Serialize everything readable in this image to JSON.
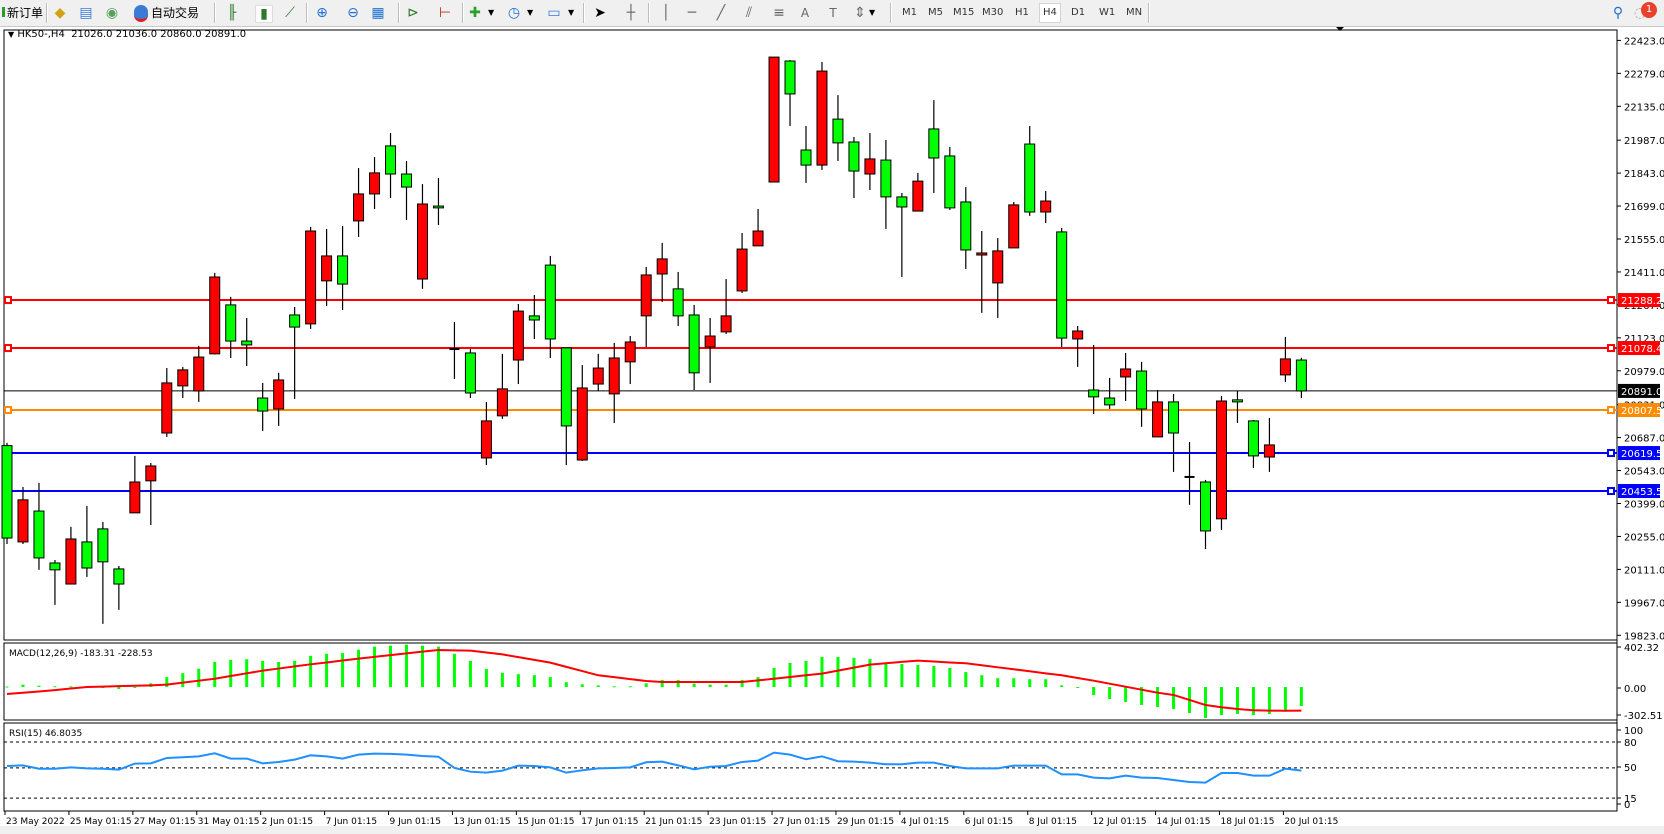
{
  "toolbar": {
    "new_order_label": "新订单",
    "auto_trading_label": "自动交易",
    "timeframes": [
      "M1",
      "M5",
      "M15",
      "M30",
      "H1",
      "H4",
      "D1",
      "W1",
      "MN"
    ],
    "active_timeframe": "H4",
    "icons": [
      "new-order-icon",
      "market-watch-icon",
      "navigator-icon",
      "signals-icon",
      "auto-trading-icon",
      "bar-chart-icon",
      "candlestick-icon",
      "line-chart-icon",
      "zoom-in-icon",
      "zoom-out-icon",
      "tile-windows-icon",
      "auto-scroll-icon",
      "chart-shift-icon",
      "new-chart-icon",
      "periods-icon",
      "templates-icon",
      "cursor-icon",
      "crosshair-icon",
      "vertical-line-icon",
      "horizontal-line-icon",
      "trendline-icon",
      "equidistant-channel-icon",
      "fibonacci-icon",
      "text-icon",
      "text-label-icon",
      "arrows-icon",
      "search-icon",
      "notifications-icon"
    ],
    "notification_count": "1"
  },
  "chart": {
    "symbol_timeframe": "HK50-,H4",
    "ohlc_readout": "21026.0 21036.0 20860.0 20891.0",
    "price_axis_labels": [
      "22423.0",
      "22279.0",
      "22135.0",
      "21987.0",
      "21843.0",
      "21699.0",
      "21555.0",
      "21411.0",
      "21267.0",
      "21123.0",
      "20979.0",
      "20831.0",
      "20687.0",
      "20543.0",
      "20399.0",
      "20255.0",
      "20111.0",
      "19967.0",
      "19823.0"
    ],
    "horizontal_lines": [
      {
        "price": 21288.2,
        "label": "21288.2",
        "color": "#ff0000",
        "kind": "level"
      },
      {
        "price": 21078.4,
        "label": "21078.4",
        "color": "#ff0000",
        "kind": "level"
      },
      {
        "price": 20891.0,
        "label": "20891.0",
        "color": "#000000",
        "kind": "bid"
      },
      {
        "price": 20807.5,
        "label": "20807.5",
        "color": "#ff8c00",
        "kind": "level"
      },
      {
        "price": 20619.5,
        "label": "20619.5",
        "color": "#0000ff",
        "kind": "level"
      },
      {
        "price": 20453.5,
        "label": "20453.5",
        "color": "#0000ff",
        "kind": "level"
      }
    ],
    "up_color": "#ff0000",
    "down_color": "#00ff00",
    "time_labels": [
      "23 May 2022",
      "25 May 01:15",
      "27 May 01:15",
      "31 May 01:15",
      "2 Jun 01:15",
      "7 Jun 01:15",
      "9 Jun 01:15",
      "13 Jun 01:15",
      "15 Jun 01:15",
      "17 Jun 01:15",
      "21 Jun 01:15",
      "23 Jun 01:15",
      "27 Jun 01:15",
      "29 Jun 01:15",
      "4 Jul 01:15",
      "6 Jul 01:15",
      "8 Jul 01:15",
      "12 Jul 01:15",
      "14 Jul 01:15",
      "18 Jul 01:15",
      "20 Jul 01:15"
    ]
  },
  "macd": {
    "label": "MACD(12,26,9) -183.31 -228.53",
    "axis_labels": [
      "402.32",
      "0.00",
      "-302.51"
    ],
    "range": [
      -302.51,
      402.32
    ],
    "histogram_color": "#00ff00",
    "signal_color": "#ff0000"
  },
  "rsi": {
    "label": "RSI(15) 46.8035",
    "axis_labels": [
      "100",
      "80",
      "50",
      "15",
      "0"
    ],
    "levels": [
      80,
      50,
      15
    ],
    "line_color": "#1e90ff"
  },
  "chart_data": [
    {
      "type": "candlestick",
      "title": "HK50-,H4",
      "ylim": [
        19823.0,
        22423.0
      ],
      "x_tick_labels": [
        "23 May 2022",
        "25 May 01:15",
        "27 May 01:15",
        "31 May 01:15",
        "2 Jun 01:15",
        "7 Jun 01:15",
        "9 Jun 01:15",
        "13 Jun 01:15",
        "15 Jun 01:15",
        "17 Jun 01:15",
        "21 Jun 01:15",
        "23 Jun 01:15",
        "27 Jun 01:15",
        "29 Jun 01:15",
        "4 Jul 01:15",
        "6 Jul 01:15",
        "8 Jul 01:15",
        "12 Jul 01:15",
        "14 Jul 01:15",
        "18 Jul 01:15",
        "20 Jul 01:15"
      ],
      "x_tick_every_n_bars": 4,
      "grid": false,
      "ohlc_fields": [
        "open",
        "high",
        "low",
        "close"
      ],
      "candles": [
        [
          20652,
          20664,
          20222,
          20248
        ],
        [
          20231,
          20471,
          20222,
          20415
        ],
        [
          20366,
          20489,
          20109,
          20161
        ],
        [
          20139,
          20152,
          19956,
          20109
        ],
        [
          20047,
          20297,
          20047,
          20244
        ],
        [
          20231,
          20388,
          20078,
          20117
        ],
        [
          20288,
          20318,
          19873,
          20144
        ],
        [
          20113,
          20126,
          19934,
          20047
        ],
        [
          20358,
          20607,
          20358,
          20493
        ],
        [
          20498,
          20576,
          20305,
          20563
        ],
        [
          20707,
          20991,
          20690,
          20926
        ],
        [
          20913,
          20996,
          20860,
          20983
        ],
        [
          20891,
          21088,
          20843,
          21039
        ],
        [
          21053,
          21407,
          21050,
          21389
        ],
        [
          21267,
          21302,
          21035,
          21109
        ],
        [
          21109,
          21210,
          21000,
          21092
        ],
        [
          20860,
          20926,
          20716,
          20803
        ],
        [
          20812,
          20970,
          20738,
          20939
        ],
        [
          21223,
          21258,
          20856,
          21170
        ],
        [
          21184,
          21608,
          21162,
          21590
        ],
        [
          21372,
          21599,
          21262,
          21481
        ],
        [
          21481,
          21612,
          21245,
          21358
        ],
        [
          21634,
          21865,
          21564,
          21752
        ],
        [
          21752,
          21913,
          21686,
          21844
        ],
        [
          21962,
          22018,
          21734,
          21839
        ],
        [
          21839,
          21896,
          21638,
          21782
        ],
        [
          21380,
          21795,
          21337,
          21708
        ],
        [
          21699,
          21822,
          21616,
          21691
        ],
        [
          21074,
          21192,
          20943,
          21074
        ],
        [
          21057,
          21074,
          20860,
          20882
        ],
        [
          20598,
          20843,
          20567,
          20760
        ],
        [
          20782,
          21053,
          20769,
          20900
        ],
        [
          21026,
          21271,
          20921,
          21240
        ],
        [
          21219,
          21310,
          21118,
          21201
        ],
        [
          21441,
          21481,
          21035,
          21118
        ],
        [
          21079,
          21079,
          20567,
          20738
        ],
        [
          20589,
          21004,
          20585,
          20904
        ],
        [
          20921,
          21053,
          20891,
          20991
        ],
        [
          20878,
          21101,
          20751,
          21035
        ],
        [
          21018,
          21131,
          20921,
          21105
        ],
        [
          21219,
          21433,
          21083,
          21398
        ],
        [
          21402,
          21538,
          21280,
          21468
        ],
        [
          21337,
          21411,
          21175,
          21219
        ],
        [
          21223,
          21267,
          20895,
          20970
        ],
        [
          21083,
          21210,
          20926,
          21131
        ],
        [
          21149,
          21380,
          21140,
          21219
        ],
        [
          21328,
          21581,
          21319,
          21511
        ],
        [
          21525,
          21686,
          21525,
          21590
        ],
        [
          21804,
          22350,
          21804,
          22350
        ],
        [
          22333,
          22337,
          22049,
          22189
        ],
        [
          21944,
          22049,
          21800,
          21878
        ],
        [
          21878,
          22329,
          21857,
          22289
        ],
        [
          22079,
          22184,
          21896,
          21975
        ],
        [
          21979,
          22001,
          21734,
          21852
        ],
        [
          21839,
          22018,
          21769,
          21905
        ],
        [
          21900,
          21988,
          21599,
          21739
        ],
        [
          21739,
          21756,
          21389,
          21695
        ],
        [
          21677,
          21844,
          21677,
          21808
        ],
        [
          22036,
          22162,
          21756,
          21909
        ],
        [
          21918,
          21957,
          21682,
          21691
        ],
        [
          21717,
          21782,
          21424,
          21507
        ],
        [
          21485,
          21590,
          21232,
          21494
        ],
        [
          21363,
          21559,
          21210,
          21503
        ],
        [
          21516,
          21717,
          21516,
          21704
        ],
        [
          21970,
          22049,
          21656,
          21673
        ],
        [
          21673,
          21765,
          21625,
          21721
        ],
        [
          21586,
          21603,
          21083,
          21122
        ],
        [
          21118,
          21175,
          20996,
          21153
        ],
        [
          20895,
          21092,
          20790,
          20865
        ],
        [
          20860,
          20948,
          20812,
          20830
        ],
        [
          20952,
          21057,
          20847,
          20987
        ],
        [
          20978,
          21018,
          20734,
          20812
        ],
        [
          20690,
          20895,
          20690,
          20843
        ],
        [
          20843,
          20878,
          20537,
          20707
        ],
        [
          20515,
          20668,
          20393,
          20515
        ],
        [
          20493,
          20502,
          20200,
          20279
        ],
        [
          20332,
          20869,
          20283,
          20847
        ],
        [
          20852,
          20891,
          20751,
          20843
        ],
        [
          20760,
          20764,
          20554,
          20607
        ],
        [
          20602,
          20773,
          20537,
          20655
        ],
        [
          20961,
          21127,
          20930,
          21031
        ],
        [
          21026.0,
          21036.0,
          20860.0,
          20891.0
        ]
      ]
    },
    {
      "type": "bar+line",
      "title": "MACD(12,26,9)",
      "ylim": [
        -302.51,
        402.32
      ],
      "series": [
        {
          "name": "MACD",
          "values": [
            5,
            23,
            13,
            7,
            7,
            0,
            -10,
            -20,
            0,
            36,
            95,
            134,
            177,
            242,
            262,
            268,
            252,
            242,
            252,
            301,
            320,
            327,
            360,
            389,
            399,
            409,
            399,
            389,
            320,
            252,
            173,
            137,
            124,
            114,
            95,
            46,
            26,
            16,
            7,
            7,
            36,
            69,
            69,
            33,
            23,
            23,
            69,
            95,
            183,
            232,
            252,
            291,
            291,
            281,
            271,
            232,
            222,
            213,
            203,
            183,
            144,
            114,
            85,
            85,
            75,
            75,
            16,
            -3,
            -77,
            -116,
            -145,
            -174,
            -193,
            -212,
            -251,
            -299,
            -270,
            -261,
            -270,
            -261,
            -222,
            -183.31
          ]
        },
        {
          "name": "Signal",
          "values": [
            -68,
            -55,
            -43,
            -30,
            -15,
            0,
            4,
            8,
            12,
            16,
            23,
            42,
            61,
            80,
            106,
            132,
            158,
            178,
            199,
            219,
            237,
            256,
            274,
            291,
            308,
            325,
            341,
            357,
            354,
            351,
            333,
            315,
            288,
            262,
            235,
            194,
            154,
            113,
            95,
            76,
            58,
            48,
            48,
            48,
            48,
            48,
            48,
            64,
            80,
            96,
            113,
            129,
            158,
            187,
            216,
            229,
            242,
            254,
            246,
            237,
            229,
            210,
            190,
            171,
            152,
            132,
            113,
            87,
            61,
            32,
            3,
            -26,
            -55,
            -77,
            -125,
            -174,
            -195,
            -212,
            -225,
            -228,
            -229,
            -228.53
          ]
        }
      ]
    },
    {
      "type": "line",
      "title": "RSI(15)",
      "ylim": [
        0,
        100
      ],
      "levels": [
        80,
        50,
        15
      ],
      "values": [
        52.2,
        52.9,
        49,
        49,
        50.6,
        49.5,
        49,
        48,
        55,
        55.3,
        61.5,
        62.3,
        63.4,
        67,
        60.8,
        60.8,
        55.3,
        56.9,
        59.6,
        64.6,
        63.4,
        60.8,
        65.4,
        66.6,
        66.2,
        65.4,
        63.8,
        63,
        49.9,
        45.6,
        44.5,
        46.8,
        52.6,
        52.2,
        50.6,
        44.5,
        47.2,
        49.5,
        49.9,
        50.6,
        56.5,
        57.3,
        52.9,
        48.3,
        51.4,
        52.2,
        56.9,
        58.4,
        67.7,
        65.4,
        60,
        63.4,
        57.7,
        57.3,
        56.1,
        54.2,
        54.2,
        56.1,
        56.1,
        52.2,
        49.5,
        49.5,
        49.5,
        52.6,
        52.6,
        52.6,
        42.5,
        42.5,
        38.7,
        37.9,
        41,
        38.7,
        38.3,
        36,
        33.7,
        32.9,
        44.1,
        44.1,
        41,
        41,
        49.1,
        46.8035
      ]
    }
  ]
}
